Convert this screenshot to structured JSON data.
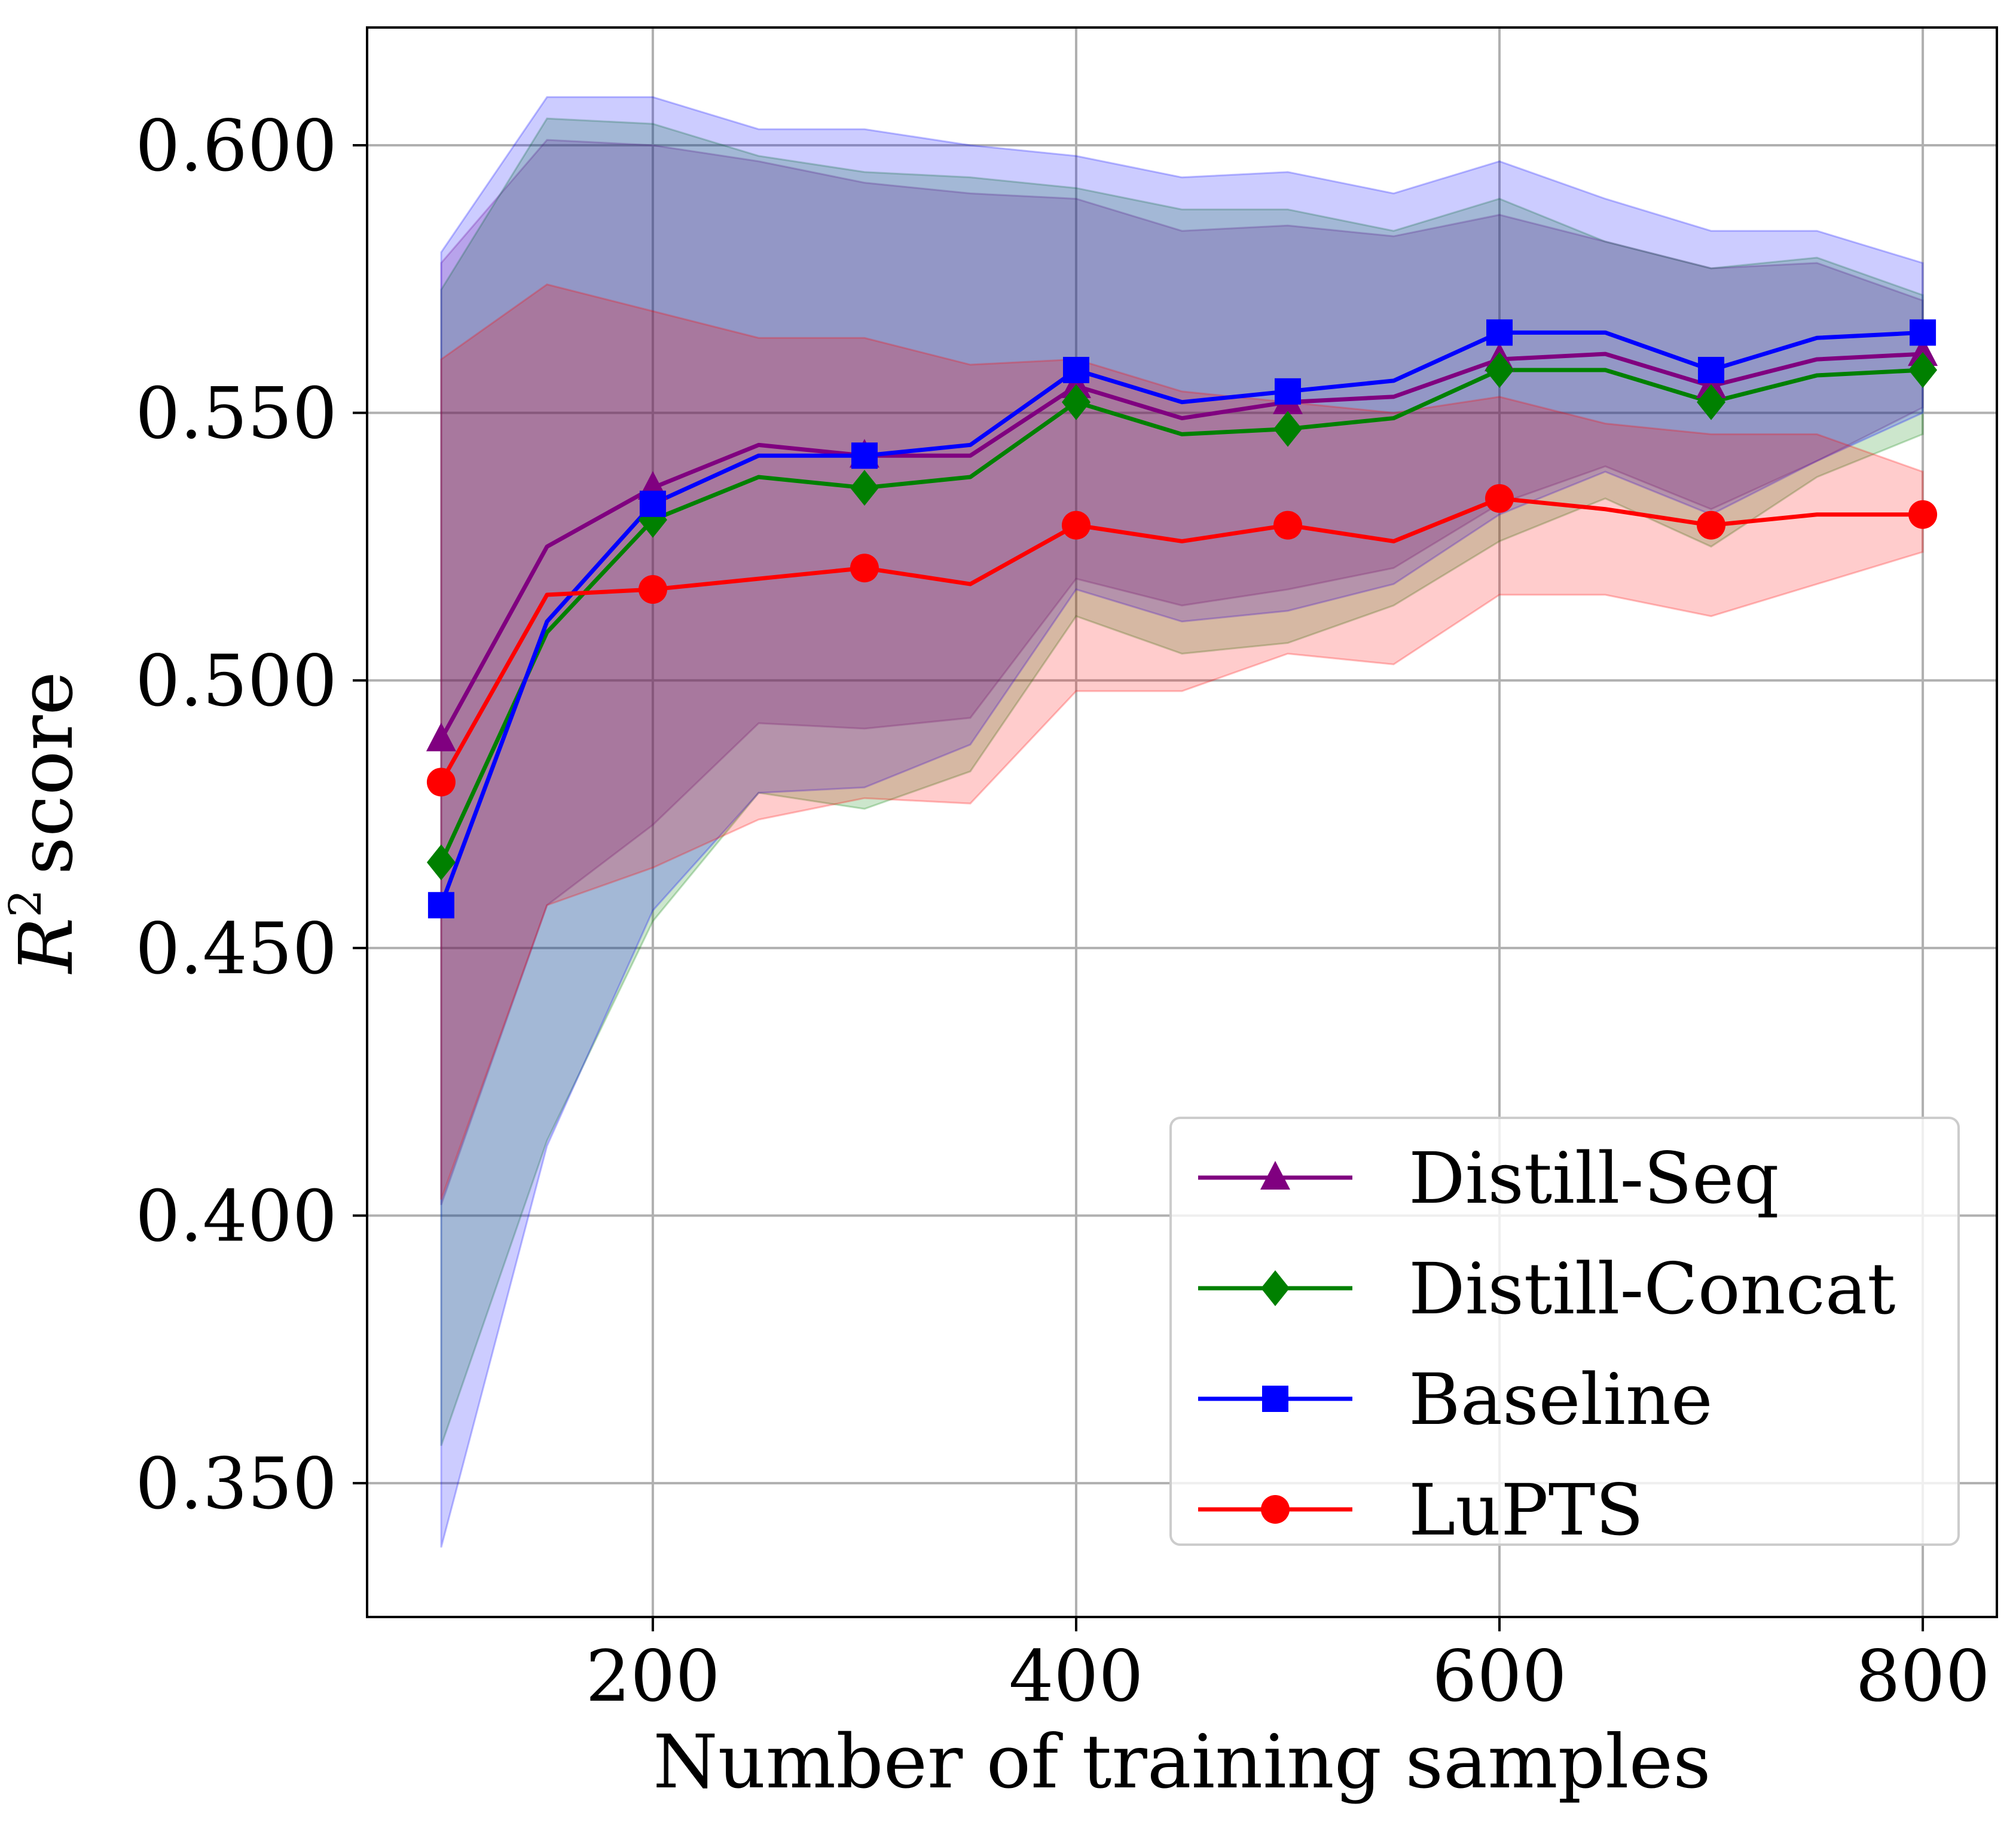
{
  "chart_data": {
    "type": "line",
    "title": "",
    "xlabel": "Number of training samples",
    "ylabel": "score",
    "ylabel_math": "R",
    "ylabel_sup": "2",
    "xlim": [
      65,
      835
    ],
    "ylim": [
      0.325,
      0.622
    ],
    "grid": true,
    "legend_position": "lower-right",
    "x_ticks": [
      200,
      400,
      600,
      800
    ],
    "x_tick_labels": [
      "200",
      "400",
      "600",
      "800"
    ],
    "y_ticks": [
      0.35,
      0.4,
      0.45,
      0.5,
      0.55,
      0.6
    ],
    "y_tick_labels": [
      "0.350",
      "0.400",
      "0.450",
      "0.500",
      "0.550",
      "0.600"
    ],
    "x": [
      100,
      150,
      200,
      250,
      300,
      350,
      400,
      450,
      500,
      550,
      600,
      650,
      700,
      750,
      800
    ],
    "series": [
      {
        "name": "Distill-Seq",
        "color": "#800080",
        "marker": "triangle",
        "values": [
          0.489,
          0.525,
          0.536,
          0.544,
          0.542,
          0.542,
          0.555,
          0.549,
          0.552,
          0.553,
          0.56,
          0.561,
          0.555,
          0.56,
          0.561
        ],
        "lower": [
          0.402,
          0.458,
          0.473,
          0.492,
          0.491,
          0.493,
          0.519,
          0.514,
          0.517,
          0.521,
          0.533,
          0.54,
          0.532,
          0.541,
          0.551
        ],
        "upper": [
          0.578,
          0.601,
          0.6,
          0.597,
          0.593,
          0.591,
          0.59,
          0.584,
          0.585,
          0.583,
          0.587,
          0.582,
          0.577,
          0.578,
          0.571
        ]
      },
      {
        "name": "Distill-Concat",
        "color": "#008000",
        "marker": "diamond",
        "values": [
          0.466,
          0.509,
          0.53,
          0.538,
          0.536,
          0.538,
          0.552,
          0.546,
          0.547,
          0.549,
          0.558,
          0.558,
          0.552,
          0.557,
          0.558
        ],
        "lower": [
          0.357,
          0.414,
          0.455,
          0.479,
          0.476,
          0.483,
          0.512,
          0.505,
          0.507,
          0.514,
          0.526,
          0.534,
          0.525,
          0.538,
          0.546
        ],
        "upper": [
          0.573,
          0.605,
          0.604,
          0.598,
          0.595,
          0.594,
          0.592,
          0.588,
          0.588,
          0.584,
          0.59,
          0.582,
          0.577,
          0.579,
          0.572
        ]
      },
      {
        "name": "Baseline",
        "color": "#0000ff",
        "marker": "square",
        "values": [
          0.458,
          0.511,
          0.533,
          0.542,
          0.542,
          0.544,
          0.558,
          0.552,
          0.554,
          0.556,
          0.565,
          0.565,
          0.558,
          0.564,
          0.565
        ],
        "lower": [
          0.338,
          0.413,
          0.457,
          0.479,
          0.48,
          0.488,
          0.517,
          0.511,
          0.513,
          0.518,
          0.531,
          0.539,
          0.531,
          0.541,
          0.55
        ],
        "upper": [
          0.58,
          0.609,
          0.609,
          0.603,
          0.603,
          0.6,
          0.598,
          0.594,
          0.595,
          0.591,
          0.597,
          0.59,
          0.584,
          0.584,
          0.578
        ]
      },
      {
        "name": "LuPTS",
        "color": "#ff0000",
        "marker": "circle",
        "values": [
          0.481,
          0.516,
          0.517,
          0.519,
          0.521,
          0.518,
          0.529,
          0.526,
          0.529,
          0.526,
          0.534,
          0.532,
          0.529,
          0.531,
          0.531
        ],
        "lower": [
          0.403,
          0.458,
          0.465,
          0.474,
          0.478,
          0.477,
          0.498,
          0.498,
          0.505,
          0.503,
          0.516,
          0.516,
          0.512,
          0.518,
          0.524
        ],
        "upper": [
          0.56,
          0.574,
          0.569,
          0.564,
          0.564,
          0.559,
          0.56,
          0.554,
          0.552,
          0.55,
          0.553,
          0.548,
          0.546,
          0.546,
          0.539
        ]
      }
    ]
  }
}
